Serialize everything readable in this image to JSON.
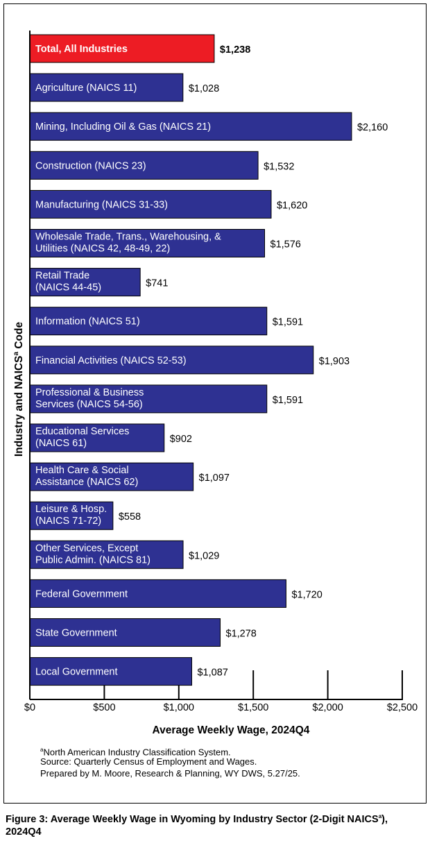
{
  "chart_data": {
    "type": "bar",
    "orientation": "horizontal",
    "categories": [
      [
        "Total, All Industries"
      ],
      [
        "Agriculture (NAICS 11)"
      ],
      [
        "Mining, Including Oil & Gas (NAICS 21)"
      ],
      [
        "Construction (NAICS 23)"
      ],
      [
        "Manufacturing (NAICS 31-33)"
      ],
      [
        "Wholesale Trade, Trans., Warehousing, &",
        "Utilities (NAICS 42, 48-49, 22)"
      ],
      [
        "Retail Trade",
        "(NAICS 44-45)"
      ],
      [
        "Information (NAICS 51)"
      ],
      [
        "Financial Activities (NAICS 52-53)"
      ],
      [
        "Professional & Business",
        "Services (NAICS 54-56)"
      ],
      [
        "Educational Services",
        "(NAICS 61)"
      ],
      [
        "Health Care & Social",
        "Assistance (NAICS 62)"
      ],
      [
        "Leisure & Hosp.",
        "(NAICS 71-72)"
      ],
      [
        "Other Services, Except",
        "Public Admin. (NAICS 81)"
      ],
      [
        "Federal Government"
      ],
      [
        "State Government"
      ],
      [
        "Local Government"
      ]
    ],
    "values": [
      1238,
      1028,
      2160,
      1532,
      1620,
      1576,
      741,
      1591,
      1903,
      1591,
      902,
      1097,
      558,
      1029,
      1720,
      1278,
      1087
    ],
    "value_labels": [
      "$1,238",
      "$1,028",
      "$2,160",
      "$1,532",
      "$1,620",
      "$1,576",
      "$741",
      "$1,591",
      "$1,903",
      "$1,591",
      "$902",
      "$1,097",
      "$558",
      "$1,029",
      "$1,720",
      "$1,278",
      "$1,087"
    ],
    "highlight_index": 0,
    "xlim": [
      0,
      2500
    ],
    "xticks": [
      0,
      500,
      1000,
      1500,
      2000,
      2500
    ],
    "xtick_labels": [
      "$0",
      "$500",
      "$1,000",
      "$1,500",
      "$2,000",
      "$2,500"
    ],
    "xlabel": "Average Weekly Wage, 2024Q4",
    "ylabel_main": "Industry and NAICS",
    "ylabel_sup": "a",
    "ylabel_end": " Code",
    "colors": {
      "bar": "#2e3192",
      "highlight": "#ed1c24",
      "bar_text": "#ffffff"
    }
  },
  "footnotes": {
    "sup": "a",
    "naics": "North American Industry Classification System.",
    "source": "Source: Quarterly Census of Employment and Wages.",
    "prepared": "Prepared by M. Moore, Research & Planning, WY DWS, 5.27/25."
  },
  "caption": {
    "part1": "Figure 3: Average Weekly Wage in Wyoming by Industry Sector (2-Digit NAICS",
    "sup": "a",
    "part2": "), 2024Q4"
  }
}
